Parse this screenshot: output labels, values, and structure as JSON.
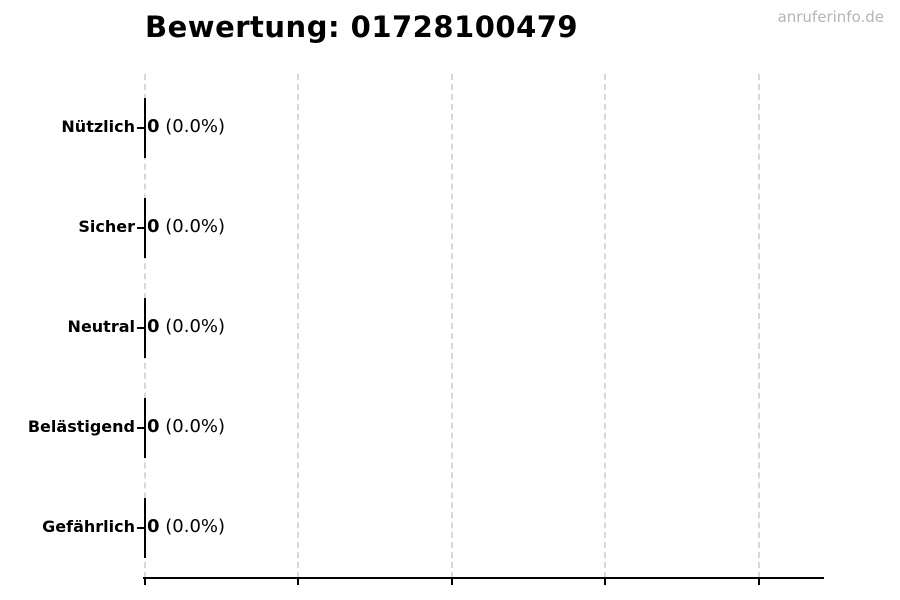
{
  "watermark": "anruferinfo.de",
  "chart_data": {
    "type": "bar",
    "orientation": "horizontal",
    "title": "Bewertung: 01728100479",
    "categories": [
      "Nützlich",
      "Sicher",
      "Neutral",
      "Belästigend",
      "Gefährlich"
    ],
    "values": [
      0,
      0,
      0,
      0,
      0
    ],
    "percent_labels": [
      "(0.0%)",
      "(0.0%)",
      "(0.0%)",
      "(0.0%)",
      "(0.0%)"
    ],
    "value_label_format": "count (percent)",
    "xlabel": "",
    "ylabel": "",
    "x_tick_labels": [],
    "x_tick_count": 5,
    "grid": "vertical-dashed",
    "legend": "none",
    "colors": {
      "text": "#000000",
      "bar_edge": "#000000",
      "axis": "#000000",
      "gridline": "#d8d8d8",
      "watermark": "#b5b5b5",
      "background": "#ffffff"
    }
  }
}
